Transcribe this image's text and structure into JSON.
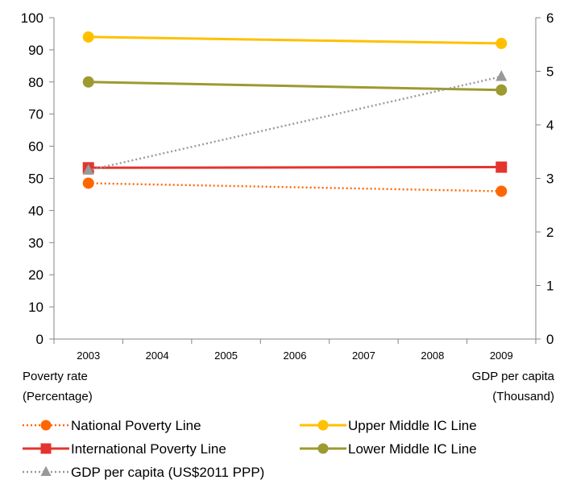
{
  "chart_data": {
    "type": "line",
    "categories": [
      "2003",
      "2004",
      "2005",
      "2006",
      "2007",
      "2008",
      "2009"
    ],
    "ylabel_left": [
      "Poverty rate",
      "(Percentage)"
    ],
    "ylabel_right": [
      "GDP per capita",
      "(Thousand)"
    ],
    "ylim_left": [
      0,
      100
    ],
    "yticks_left": [
      0,
      10,
      20,
      30,
      40,
      50,
      60,
      70,
      80,
      90,
      100
    ],
    "ylim_right": [
      0,
      6
    ],
    "yticks_right": [
      0,
      1,
      2,
      3,
      4,
      5,
      6
    ],
    "grid": false,
    "legend_position": "bottom",
    "series": [
      {
        "name": "National Poverty Line",
        "axis": "left",
        "x": [
          "2003",
          "2009"
        ],
        "values": [
          48.5,
          46
        ],
        "color": "#FF6600",
        "style": "dotted",
        "marker": "circle"
      },
      {
        "name": "Upper Middle IC Line",
        "axis": "left",
        "x": [
          "2003",
          "2009"
        ],
        "values": [
          94,
          92
        ],
        "color": "#FFC000",
        "style": "solid",
        "marker": "circle"
      },
      {
        "name": "International Poverty Line",
        "axis": "left",
        "x": [
          "2003",
          "2009"
        ],
        "values": [
          53.3,
          53.5
        ],
        "color": "#E3342F",
        "style": "solid",
        "marker": "square"
      },
      {
        "name": "Lower Middle IC Line",
        "axis": "left",
        "x": [
          "2003",
          "2009"
        ],
        "values": [
          80,
          77.5
        ],
        "color": "#9C9A30",
        "style": "solid",
        "marker": "circle"
      },
      {
        "name": "GDP per capita (US$2011 PPP)",
        "axis": "right",
        "x": [
          "2003",
          "2009"
        ],
        "values": [
          3.15,
          4.9
        ],
        "color": "#999999",
        "style": "dotted",
        "marker": "triangle"
      }
    ]
  }
}
